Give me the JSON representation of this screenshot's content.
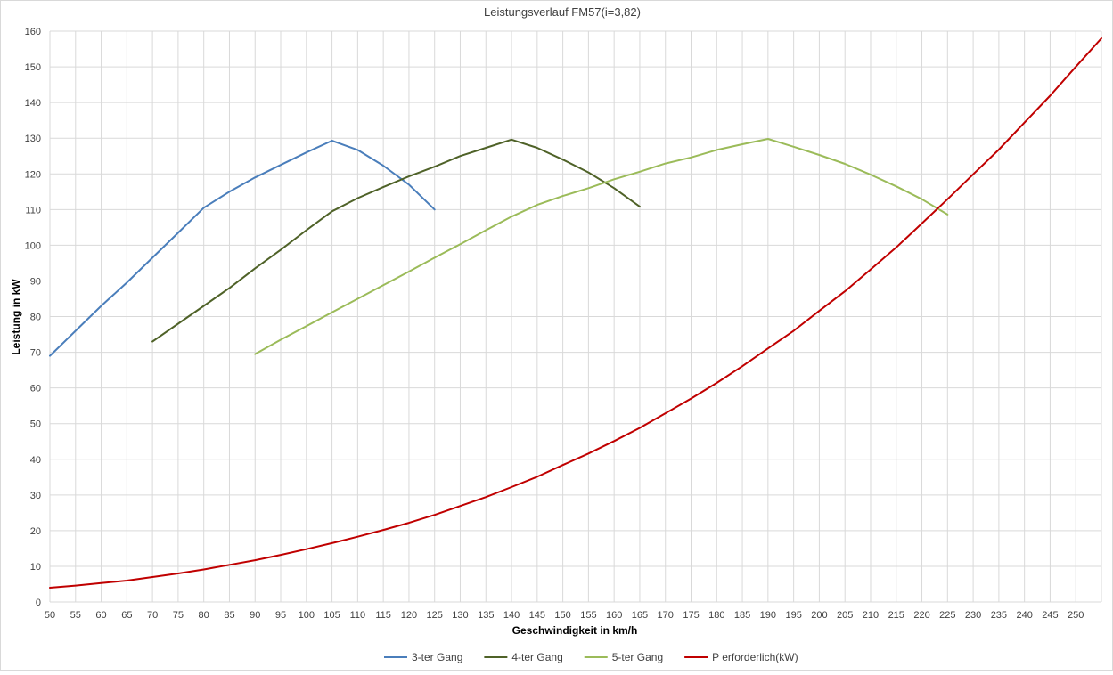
{
  "chart_data": {
    "type": "line",
    "title": "Leistungsverlauf FM57(i=3,82)",
    "xlabel": "Geschwindigkeit in km/h",
    "ylabel": "Leistung in kW",
    "x_ticks": [
      "50",
      "55",
      "60",
      "65",
      "70",
      "75",
      "80",
      "85",
      "90",
      "95",
      "100",
      "105",
      "110",
      "115",
      "120",
      "125",
      "130",
      "135",
      "140",
      "145",
      "150",
      "155",
      "160",
      "165",
      "170",
      "175",
      "180",
      "185",
      "190",
      "195",
      "200",
      "205",
      "210",
      "215",
      "220",
      "225",
      "230",
      "235",
      "240",
      "245",
      "250"
    ],
    "xlim": [
      50,
      255
    ],
    "ylim": [
      0,
      160
    ],
    "y_ticks": [
      "0",
      "10",
      "20",
      "30",
      "40",
      "50",
      "60",
      "70",
      "80",
      "90",
      "100",
      "110",
      "120",
      "130",
      "140",
      "150",
      "160"
    ],
    "grid": true,
    "legend_position": "bottom",
    "series": [
      {
        "name": "3-ter Gang",
        "color": "#4a7ebb",
        "x": [
          50,
          55,
          60,
          65,
          70,
          75,
          80,
          85,
          90,
          95,
          100,
          105,
          110,
          115,
          120,
          125
        ],
        "y": [
          69,
          76,
          83,
          89.5,
          96.5,
          103.5,
          110.5,
          115,
          119,
          122.5,
          126,
          129.3,
          126.7,
          122.3,
          117,
          110
        ]
      },
      {
        "name": "4-ter Gang",
        "color": "#4f6228",
        "x": [
          70,
          75,
          80,
          85,
          90,
          95,
          100,
          105,
          110,
          115,
          120,
          125,
          130,
          135,
          140,
          145,
          150,
          155,
          160,
          165
        ],
        "y": [
          73,
          78,
          83,
          88,
          93.5,
          98.7,
          104.2,
          109.5,
          113.2,
          116.3,
          119.3,
          122,
          125,
          127.3,
          129.6,
          127.3,
          124,
          120.4,
          116,
          110.8
        ]
      },
      {
        "name": "5-ter Gang",
        "color": "#9bbb59",
        "x": [
          90,
          95,
          100,
          105,
          110,
          115,
          120,
          125,
          130,
          135,
          140,
          145,
          150,
          155,
          160,
          165,
          170,
          175,
          180,
          185,
          190,
          195,
          200,
          205,
          210,
          215,
          220,
          225
        ],
        "y": [
          69.5,
          73.5,
          77.3,
          81.2,
          85,
          88.8,
          92.6,
          96.5,
          100.3,
          104.2,
          108,
          111.3,
          113.8,
          116,
          118.5,
          120.6,
          122.9,
          124.6,
          126.7,
          128.3,
          129.8,
          127.6,
          125.3,
          122.8,
          119.8,
          116.5,
          112.9,
          108.6
        ]
      },
      {
        "name": "P erforderlich(kW)",
        "color": "#c00000",
        "x": [
          50,
          55,
          60,
          65,
          70,
          75,
          80,
          85,
          90,
          95,
          100,
          105,
          110,
          115,
          120,
          125,
          130,
          135,
          140,
          145,
          150,
          155,
          160,
          165,
          170,
          175,
          180,
          185,
          190,
          195,
          200,
          205,
          210,
          215,
          220,
          225,
          230,
          235,
          240,
          245,
          250,
          255
        ],
        "y": [
          4,
          4.6,
          5.3,
          6,
          7,
          8,
          9.1,
          10.4,
          11.7,
          13.2,
          14.8,
          16.5,
          18.3,
          20.2,
          22.2,
          24.4,
          26.9,
          29.4,
          32.2,
          35.1,
          38.4,
          41.6,
          45.1,
          48.8,
          52.9,
          57,
          61.4,
          66.1,
          71.1,
          76,
          81.6,
          87.1,
          93.2,
          99.4,
          106.1,
          112.9,
          119.9,
          126.8,
          134.4,
          141.9,
          150,
          158
        ]
      }
    ]
  }
}
